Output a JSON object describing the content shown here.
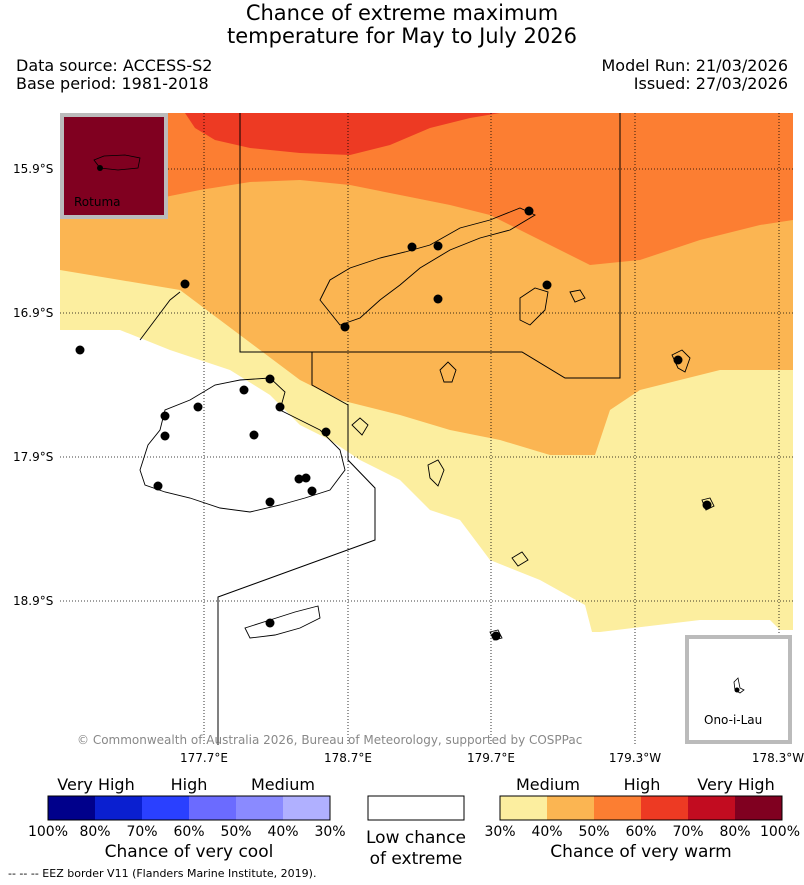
{
  "header": {
    "title_line1": "Chance of extreme maximum",
    "title_line2": "temperature for May to July 2026",
    "data_source": "Data source: ACCESS-S2",
    "base_period": "Base period: 1981-2018",
    "model_run": "Model Run: 21/03/2026",
    "issued": "Issued: 27/03/2026"
  },
  "map": {
    "lat_labels": [
      "15.9°S",
      "16.9°S",
      "17.9°S",
      "18.9°S"
    ],
    "lon_labels": [
      "177.7°E",
      "178.7°E",
      "179.7°E",
      "179.3°W",
      "178.3°W"
    ],
    "inset_rotuma_label": "Rotuma",
    "inset_onoilau_label": "Ono-i-Lau",
    "copyright": "© Commonwealth of Australia 2026, Bureau of Meteorology, supported by COSPPac",
    "colors": {
      "c30_40": "#fcee9f",
      "c40_50": "#fbb552",
      "c50_60": "#fc7e32",
      "c60_70": "#ed3a23",
      "c70_80": "#c20c20",
      "c80_100": "#800020"
    }
  },
  "legend": {
    "cool": {
      "levels": [
        "Very High",
        "High",
        "Medium"
      ],
      "ticks": [
        "100%",
        "80%",
        "70%",
        "60%",
        "50%",
        "40%",
        "30%"
      ],
      "label": "Chance of very cool",
      "colors": [
        "#00008b",
        "#0a1fd0",
        "#2a40ff",
        "#6b6bff",
        "#8a8aff",
        "#b0b0ff"
      ]
    },
    "neutral": {
      "line1": "Low chance",
      "line2": "of extreme"
    },
    "warm": {
      "levels": [
        "Medium",
        "High",
        "Very High"
      ],
      "ticks": [
        "30%",
        "40%",
        "50%",
        "60%",
        "70%",
        "80%",
        "100%"
      ],
      "label": "Chance of very warm",
      "colors": [
        "#fcee9f",
        "#fbb552",
        "#fc7e32",
        "#ed3a23",
        "#c20c20",
        "#800020"
      ]
    }
  },
  "footnote": "-- -- -- EEZ border V11 (Flanders Marine Institute, 2019)."
}
